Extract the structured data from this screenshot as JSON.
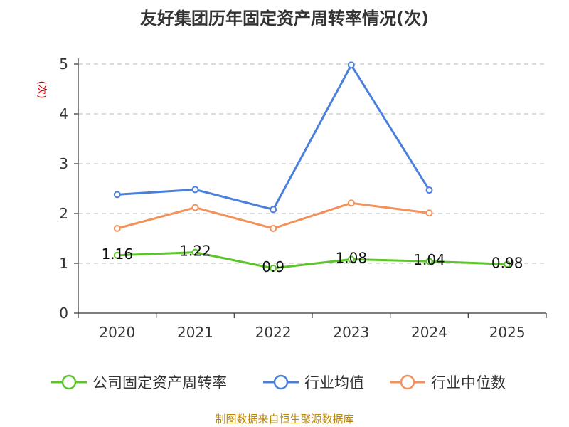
{
  "chart_data": {
    "type": "line",
    "title": "友好集团历年固定资产周转率情况(次)",
    "ylabel": "(次)",
    "ylim": [
      0,
      5
    ],
    "yticks": [
      0,
      1,
      2,
      3,
      4,
      5
    ],
    "categories": [
      "2020",
      "2021",
      "2022",
      "2023",
      "2024",
      "2025"
    ],
    "grid": true,
    "legend_position": "bottom",
    "series": [
      {
        "name": "公司固定资产周转率",
        "color": "#5ec42b",
        "values": [
          1.16,
          1.22,
          0.9,
          1.08,
          1.04,
          0.98
        ],
        "labels": [
          "1.16",
          "1.22",
          "0.9",
          "1.08",
          "1.04",
          "0.98"
        ]
      },
      {
        "name": "行业均值",
        "color": "#4a7fdc",
        "values": [
          2.38,
          2.48,
          2.08,
          4.98,
          2.47,
          null
        ]
      },
      {
        "name": "行业中位数",
        "color": "#f2915a",
        "values": [
          1.7,
          2.12,
          1.7,
          2.21,
          2.01,
          null
        ]
      }
    ],
    "source": "制图数据来自恒生聚源数据库"
  }
}
